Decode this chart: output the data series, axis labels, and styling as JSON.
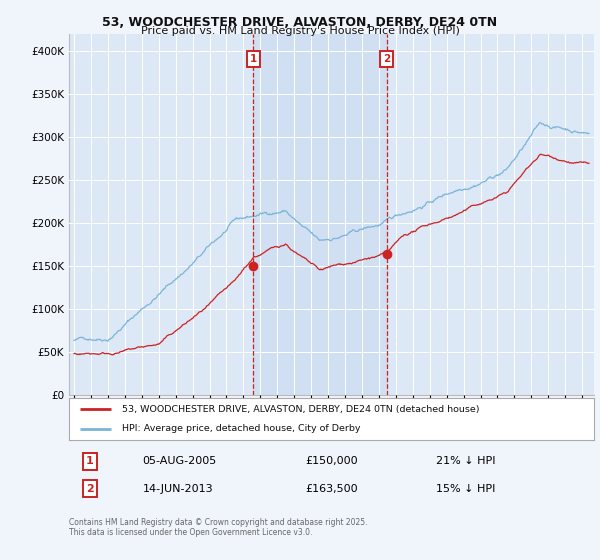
{
  "title1": "53, WOODCHESTER DRIVE, ALVASTON, DERBY, DE24 0TN",
  "title2": "Price paid vs. HM Land Registry's House Price Index (HPI)",
  "bg_color": "#f0f4fb",
  "plot_bg": "#dce8f5",
  "legend_label_red": "53, WOODCHESTER DRIVE, ALVASTON, DERBY, DE24 0TN (detached house)",
  "legend_label_blue": "HPI: Average price, detached house, City of Derby",
  "transaction1_date": "05-AUG-2005",
  "transaction1_price": 150000,
  "transaction1_hpi": "21% ↓ HPI",
  "transaction2_date": "14-JUN-2013",
  "transaction2_price": 163500,
  "transaction2_hpi": "15% ↓ HPI",
  "footnote": "Contains HM Land Registry data © Crown copyright and database right 2025.\nThis data is licensed under the Open Government Licence v3.0.",
  "ylim_max": 420000,
  "ylim_min": 0,
  "t1_year": 2005.59,
  "t2_year": 2013.45
}
